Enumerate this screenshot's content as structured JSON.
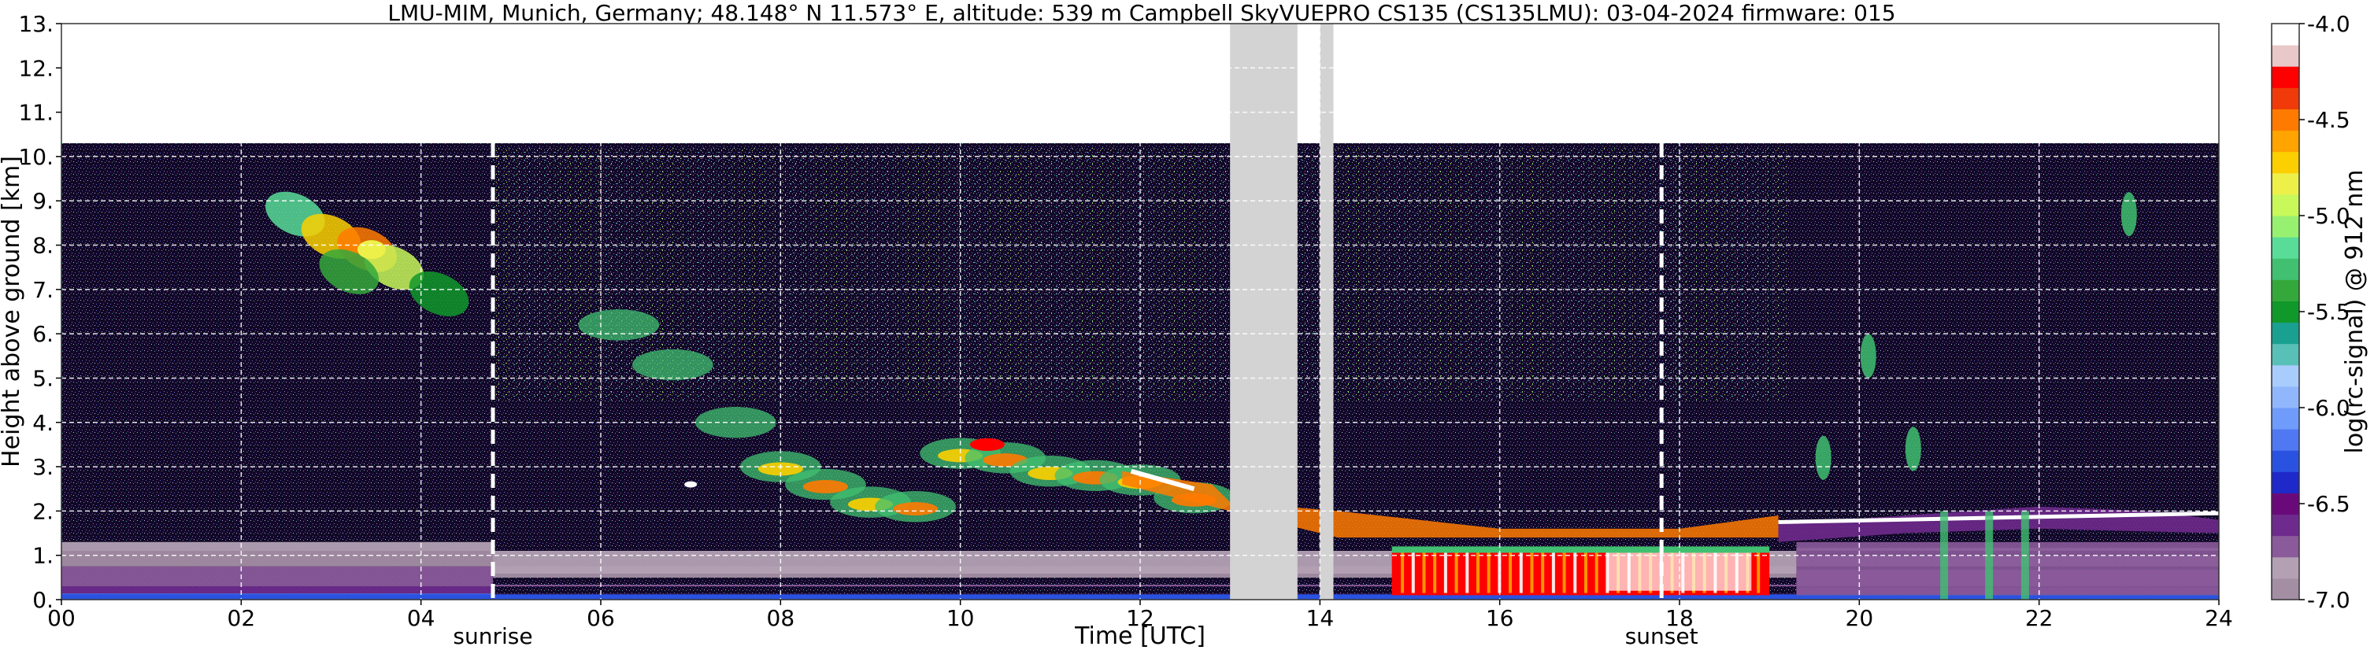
{
  "chart_data": {
    "type": "heatmap",
    "title": "LMU-MIM, Munich, Germany; 48.148° N 11.573° E, altitude: 539 m    Campbell SkyVUEPRO CS135 (CS135LMU): 03-04-2024    firmware: 015",
    "xlabel": "Time [UTC]",
    "ylabel": "Height above ground [km]",
    "xlim": [
      0,
      24
    ],
    "ylim": [
      0,
      13
    ],
    "x_ticks": [
      "00",
      "02",
      "04",
      "06",
      "08",
      "10",
      "12",
      "14",
      "16",
      "18",
      "20",
      "22",
      "24"
    ],
    "y_ticks": [
      "0.",
      "1.",
      "2.",
      "3.",
      "4.",
      "5.",
      "6.",
      "7.",
      "8.",
      "9.",
      "10.",
      "11.",
      "12.",
      "13."
    ],
    "grid": true,
    "measurement_top_km": 10.3,
    "annotations": [
      {
        "label": "sunrise",
        "x": 4.8
      },
      {
        "label": "sunset",
        "x": 17.8
      }
    ],
    "data_gaps_utc": [
      [
        13.0,
        13.75
      ],
      [
        14.0,
        14.15
      ]
    ],
    "colorbar": {
      "label": "log(rc-signal) @ 912 nm",
      "range": [
        -7.0,
        -4.0
      ],
      "ticks": [
        "-4.0",
        "-4.5",
        "-5.0",
        "-5.5",
        "-6.0",
        "-6.5",
        "-7.0"
      ],
      "colors": [
        "#a48ea4",
        "#b3a0b3",
        "#8a5a9a",
        "#6e2a8c",
        "#6a0a7a",
        "#1f28c8",
        "#2a52e0",
        "#4f78f2",
        "#6f9cfa",
        "#90b6fc",
        "#a8ccfc",
        "#58c0b6",
        "#1aa090",
        "#10982a",
        "#35a83c",
        "#40c070",
        "#58dc98",
        "#98f070",
        "#c8f85a",
        "#eef04a",
        "#fcd000",
        "#ffa400",
        "#ff7a00",
        "#f03a0a",
        "#ff0000",
        "#e8c8c8",
        "#ffffff"
      ]
    },
    "features": [
      {
        "name": "boundary layer",
        "x_start": 0,
        "x_end": 24,
        "height_km": [
          0,
          1.3
        ]
      },
      {
        "name": "cirrus",
        "x_start": 2.5,
        "x_end": 4.5,
        "height_km": [
          6.7,
          8.7
        ]
      },
      {
        "name": "descending aerosol/cloud layer",
        "x_start": 6.5,
        "x_end": 12.8,
        "height_km": [
          1.8,
          5.5
        ]
      },
      {
        "name": "cloud layer",
        "x_start": 12.8,
        "x_end": 17.9,
        "height_km": [
          1.0,
          2.8
        ]
      },
      {
        "name": "low cloud / precipitation",
        "x_start": 14.8,
        "x_end": 19.0,
        "height_km": [
          0,
          1.2
        ]
      },
      {
        "name": "cloud top layer",
        "x_start": 19.1,
        "x_end": 24,
        "height_km": [
          1.6,
          2.2
        ]
      }
    ]
  }
}
